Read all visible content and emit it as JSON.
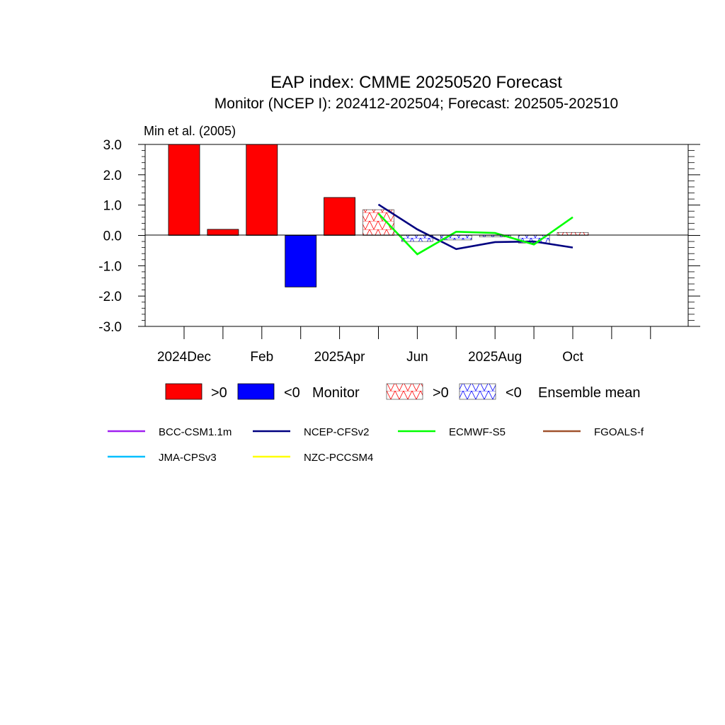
{
  "chart_data": {
    "type": "bar",
    "title": "EAP index: CMME 20250520 Forecast",
    "subtitle": "Monitor (NCEP I): 202412-202504; Forecast: 202505-202510",
    "source_note": "Min et al. (2005)",
    "xlabel": "",
    "ylabel": "",
    "ylim": [
      -3.0,
      3.0
    ],
    "yticks": [
      "3.0",
      "2.0",
      "1.0",
      "0.0",
      "-1.0",
      "-2.0",
      "-3.0"
    ],
    "ytick_values": [
      3,
      2,
      1,
      0,
      -1,
      -2,
      -3
    ],
    "months": [
      "2024-12",
      "2025-01",
      "2025-02",
      "2025-03",
      "2025-04",
      "2025-05",
      "2025-06",
      "2025-07",
      "2025-08",
      "2025-09",
      "2025-10",
      "2025-11",
      "2025-12"
    ],
    "xtick_labels": [
      {
        "month": "2024-12",
        "label": "2024Dec"
      },
      {
        "month": "2025-02",
        "label": "Feb"
      },
      {
        "month": "2025-04",
        "label": "2025Apr"
      },
      {
        "month": "2025-06",
        "label": "Jun"
      },
      {
        "month": "2025-08",
        "label": "2025Aug"
      },
      {
        "month": "2025-10",
        "label": "Oct"
      }
    ],
    "monitor": {
      "months": [
        "2024-12",
        "2025-01",
        "2025-02",
        "2025-03",
        "2025-04"
      ],
      "values": [
        3.0,
        0.2,
        3.0,
        -1.7,
        1.25
      ]
    },
    "ensemble_mean": {
      "months": [
        "2025-05",
        "2025-06",
        "2025-07",
        "2025-08",
        "2025-09",
        "2025-10"
      ],
      "values": [
        0.85,
        -0.2,
        -0.15,
        -0.05,
        -0.25,
        0.1
      ]
    },
    "series": [
      {
        "name": "BCC-CSM1.1m",
        "color": "#a020f0",
        "values": []
      },
      {
        "name": "NCEP-CFSv2",
        "color": "#000080",
        "months": [
          "2025-05",
          "2025-06",
          "2025-07",
          "2025-08",
          "2025-09",
          "2025-10"
        ],
        "values": [
          1.02,
          0.2,
          -0.45,
          -0.22,
          -0.2,
          -0.4
        ]
      },
      {
        "name": "ECMWF-S5",
        "color": "#00ff00",
        "months": [
          "2025-05",
          "2025-06",
          "2025-07",
          "2025-08",
          "2025-09",
          "2025-10"
        ],
        "values": [
          0.72,
          -0.62,
          0.12,
          0.08,
          -0.3,
          0.6
        ]
      },
      {
        "name": "FGOALS-f",
        "color": "#a0522d",
        "values": []
      },
      {
        "name": "JMA-CPSv3",
        "color": "#00bfff",
        "values": []
      },
      {
        "name": "NZC-PCCSM4",
        "color": "#ffff00",
        "values": []
      }
    ],
    "colors": {
      "positive": "#ff0000",
      "negative": "#0000ff",
      "hatch_positive": "#ff0000",
      "hatch_negative": "#0000ff"
    },
    "legend": {
      "gt0": ">0",
      "lt0": "<0",
      "monitor_label": "Monitor",
      "ensemble_label": "Ensemble mean",
      "placement": "bottom"
    },
    "grid": false
  }
}
